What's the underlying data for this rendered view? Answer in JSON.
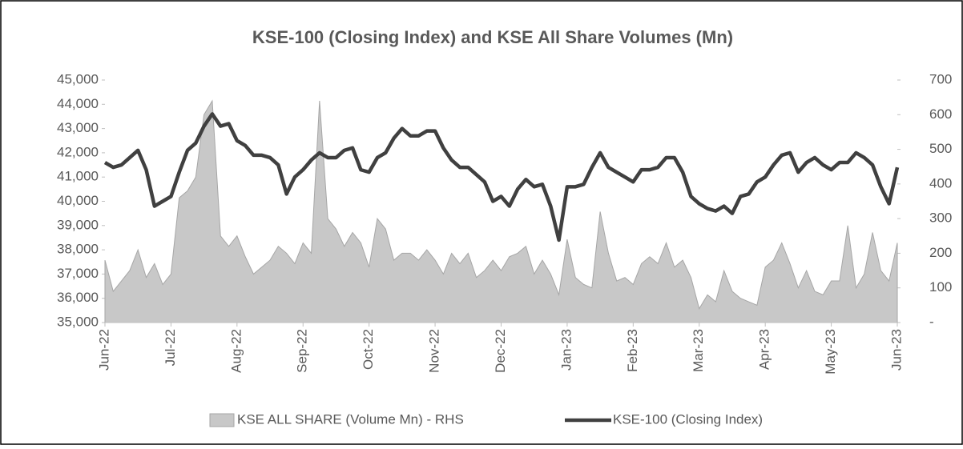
{
  "chart_data": {
    "type": "line",
    "title": "KSE-100 (Closing Index) and KSE All Share Volumes (Mn)",
    "categories": [
      "Jun-22",
      null,
      null,
      null,
      null,
      null,
      null,
      null,
      "Jul-22",
      null,
      null,
      null,
      null,
      null,
      null,
      null,
      "Aug-22",
      null,
      null,
      null,
      null,
      null,
      null,
      null,
      "Sep-22",
      null,
      null,
      null,
      null,
      null,
      null,
      null,
      "Oct-22",
      null,
      null,
      null,
      null,
      null,
      null,
      null,
      "Nov-22",
      null,
      null,
      null,
      null,
      null,
      null,
      null,
      "Dec-22",
      null,
      null,
      null,
      null,
      null,
      null,
      null,
      "Jan-23",
      null,
      null,
      null,
      null,
      null,
      null,
      null,
      "Feb-23",
      null,
      null,
      null,
      null,
      null,
      null,
      null,
      "Mar-23",
      null,
      null,
      null,
      null,
      null,
      null,
      null,
      "Apr-23",
      null,
      null,
      null,
      null,
      null,
      null,
      null,
      "May-23",
      null,
      null,
      null,
      null,
      null,
      null,
      null,
      "Jun-23"
    ],
    "series": [
      {
        "name": "KSE ALL SHARE (Volume Mn) - RHS",
        "type": "area",
        "axis": "y2",
        "color": "#c8c8c8",
        "values": [
          180,
          90,
          120,
          150,
          210,
          130,
          170,
          110,
          140,
          360,
          380,
          420,
          600,
          640,
          250,
          220,
          250,
          190,
          140,
          160,
          180,
          220,
          200,
          170,
          230,
          200,
          640,
          300,
          270,
          220,
          260,
          230,
          160,
          300,
          270,
          180,
          200,
          200,
          180,
          210,
          180,
          140,
          200,
          170,
          200,
          130,
          150,
          180,
          150,
          190,
          200,
          220,
          140,
          180,
          140,
          80,
          240,
          130,
          110,
          100,
          320,
          200,
          120,
          130,
          110,
          170,
          190,
          170,
          230,
          160,
          180,
          130,
          40,
          80,
          60,
          150,
          90,
          70,
          60,
          50,
          160,
          180,
          230,
          170,
          100,
          150,
          90,
          80,
          120,
          120,
          280,
          100,
          140,
          260,
          150,
          120,
          230
        ]
      },
      {
        "name": "KSE-100 (Closing Index)",
        "type": "line",
        "color": "#404040",
        "values": [
          41600,
          41400,
          41500,
          41800,
          42100,
          41300,
          39800,
          40000,
          40200,
          41200,
          42100,
          42400,
          43100,
          43600,
          43100,
          43200,
          42500,
          42300,
          41900,
          41900,
          41800,
          41500,
          40300,
          41000,
          41300,
          41700,
          42000,
          41800,
          41800,
          42100,
          42200,
          41300,
          41200,
          41800,
          42000,
          42600,
          43000,
          42700,
          42700,
          42900,
          42900,
          42200,
          41700,
          41400,
          41400,
          41100,
          40800,
          40000,
          40200,
          39800,
          40500,
          40900,
          40600,
          40700,
          39800,
          38400,
          40600,
          40600,
          40700,
          41400,
          42000,
          41400,
          41200,
          41000,
          40800,
          41300,
          41300,
          41400,
          41800,
          41800,
          41200,
          40200,
          39900,
          39700,
          39600,
          39800,
          39500,
          40200,
          40300,
          40800,
          41000,
          41500,
          41900,
          42000,
          41200,
          41600,
          41800,
          41500,
          41300,
          41600,
          41600,
          42000,
          41800,
          41500,
          40600,
          39900,
          41400
        ]
      }
    ],
    "ylim": [
      35000,
      45000
    ],
    "yticks": [
      {
        "value": 35000,
        "label": "35,000"
      },
      {
        "value": 36000,
        "label": "36,000"
      },
      {
        "value": 37000,
        "label": "37,000"
      },
      {
        "value": 38000,
        "label": "38,000"
      },
      {
        "value": 39000,
        "label": "39,000"
      },
      {
        "value": 40000,
        "label": "40,000"
      },
      {
        "value": 41000,
        "label": "41,000"
      },
      {
        "value": 42000,
        "label": "42,000"
      },
      {
        "value": 43000,
        "label": "43,000"
      },
      {
        "value": 44000,
        "label": "44,000"
      },
      {
        "value": 45000,
        "label": "45,000"
      }
    ],
    "y2lim": [
      0,
      700
    ],
    "y2ticks": [
      {
        "value": 0,
        "label": "-"
      },
      100,
      200,
      300,
      400,
      500,
      600,
      700
    ],
    "legend": "bottom"
  }
}
